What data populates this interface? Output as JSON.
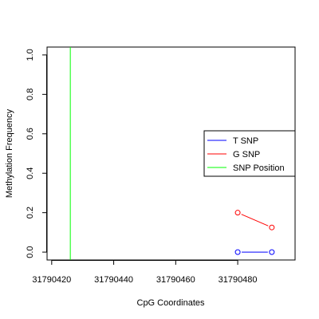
{
  "chart_data": {
    "type": "line",
    "title": "",
    "xlabel": "CpG Coordinates",
    "ylabel": "Methylation Frequency",
    "xlim": [
      31790418.5,
      31790498.5
    ],
    "ylim": [
      -0.04,
      1.04
    ],
    "x_ticks": [
      31790420,
      31790440,
      31790460,
      31790480
    ],
    "y_ticks": [
      0.0,
      0.2,
      0.4,
      0.6,
      0.8,
      1.0
    ],
    "x_tick_labels": [
      "31790420",
      "31790440",
      "31790460",
      "31790480"
    ],
    "y_tick_labels": [
      "0.0",
      "0.2",
      "0.4",
      "0.6",
      "0.8",
      "1.0"
    ],
    "grid": false,
    "legend_position": "right",
    "series": [
      {
        "name": "T SNP",
        "color": "#0000ff",
        "x": [
          31790480,
          31790491
        ],
        "y": [
          0.0,
          0.0
        ]
      },
      {
        "name": "G SNP",
        "color": "#ff0000",
        "x": [
          31790480,
          31790491
        ],
        "y": [
          0.2,
          0.125
        ]
      }
    ],
    "vertical_lines": [
      {
        "name": "SNP Position",
        "color": "#00ff00",
        "x": 31790426
      }
    ],
    "legend": [
      {
        "label": "T SNP",
        "color": "#0000ff"
      },
      {
        "label": "G SNP",
        "color": "#ff0000"
      },
      {
        "label": "SNP Position",
        "color": "#00ff00"
      }
    ]
  }
}
